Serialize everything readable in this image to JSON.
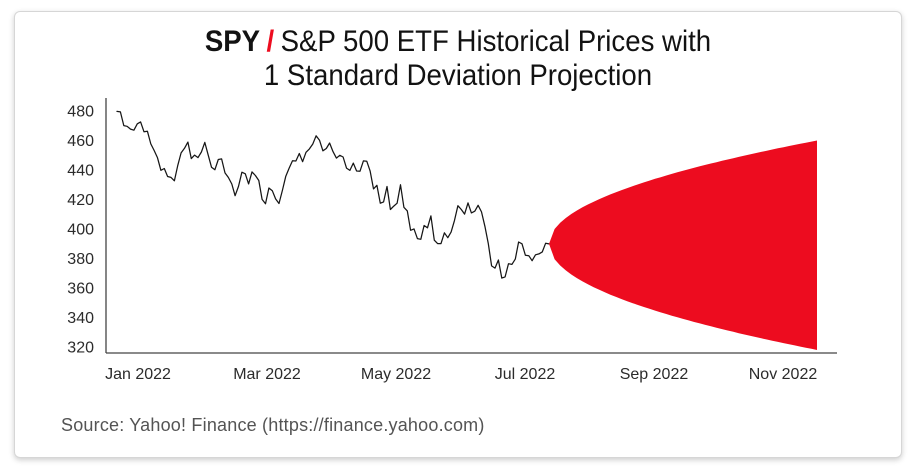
{
  "title": {
    "ticker": "SPY",
    "separator": "/",
    "rest": "S&P 500 ETF Historical Prices with",
    "line2": "1 Standard Deviation Projection"
  },
  "source": {
    "text": "Source: Yahoo! Finance (https://finance.yahoo.com)"
  },
  "colors": {
    "projection_red": "#ED0C1F",
    "price_line": "#161616",
    "axis": "#444444",
    "tick_label": "#2b2b2b",
    "title_text": "#121212",
    "source_gray": "#545454"
  },
  "chart_data": {
    "type": "line",
    "title": "SPY / S&P 500 ETF Historical Prices with 1 Standard Deviation Projection",
    "xlabel": "",
    "ylabel": "",
    "grid": false,
    "legend": "none",
    "y_ticks": [
      480,
      460,
      440,
      420,
      400,
      380,
      360,
      340,
      320
    ],
    "y_axis_range": [
      320,
      480
    ],
    "x_ticks": [
      "Jan 2022",
      "Mar 2022",
      "May 2022",
      "Jul 2022",
      "Sep 2022",
      "Nov 2022"
    ],
    "series": [
      {
        "name": "SPY daily close, Jan 2022 - early Jul 2022",
        "values": [
          479.7,
          479.4,
          470.1,
          469.6,
          467.7,
          467.0,
          471.3,
          472.6,
          465.9,
          466.3,
          457.7,
          453.3,
          448.3,
          439.8,
          441.0,
          435.6,
          435.0,
          432.7,
          443.2,
          451.6,
          454.7,
          458.9,
          447.7,
          450.1,
          448.4,
          452.2,
          458.7,
          450.4,
          441.9,
          440.2,
          447.1,
          447.5,
          438.0,
          434.9,
          430.5,
          422.6,
          428.9,
          438.5,
          437.4,
          430.6,
          438.7,
          436.3,
          432.9,
          420.1,
          417.1,
          427.8,
          426.0,
          420.4,
          417.3,
          426.2,
          435.8,
          441.2,
          446.3,
          446.1,
          451.2,
          445.6,
          452.0,
          454.3,
          457.6,
          463.2,
          460.2,
          453.0,
          454.6,
          458.3,
          452.5,
          448.1,
          450.0,
          448.8,
          441.3,
          439.7,
          444.7,
          439.3,
          439.2,
          446.2,
          445.9,
          439.4,
          427.2,
          429.6,
          417.5,
          418.4,
          428.8,
          413.2,
          415.5,
          417.5,
          430.0,
          414.7,
          412.3,
          399.1,
          400.1,
          393.5,
          393.0,
          402.4,
          400.8,
          408.9,
          392.4,
          390.1,
          390.1,
          397.4,
          394.1,
          397.9,
          405.8,
          415.8,
          413.2,
          410.1,
          417.7,
          410.9,
          412.1,
          416.1,
          411.6,
          401.8,
          390.1,
          375.0,
          373.5,
          379.0,
          366.7,
          367.5,
          376.5,
          376.0,
          379.6,
          391.2,
          390.0,
          382.2,
          381.9,
          378.5,
          382.5,
          383.1,
          384.5,
          390.3,
          389.9
        ]
      }
    ],
    "projection": {
      "name": "1 standard deviation projection cone",
      "shape": "sqrt",
      "start_value": 389.9,
      "upper_end": 460,
      "lower_end": 318,
      "start_label": "Jul 2022",
      "end_label": "Nov 2022"
    }
  }
}
